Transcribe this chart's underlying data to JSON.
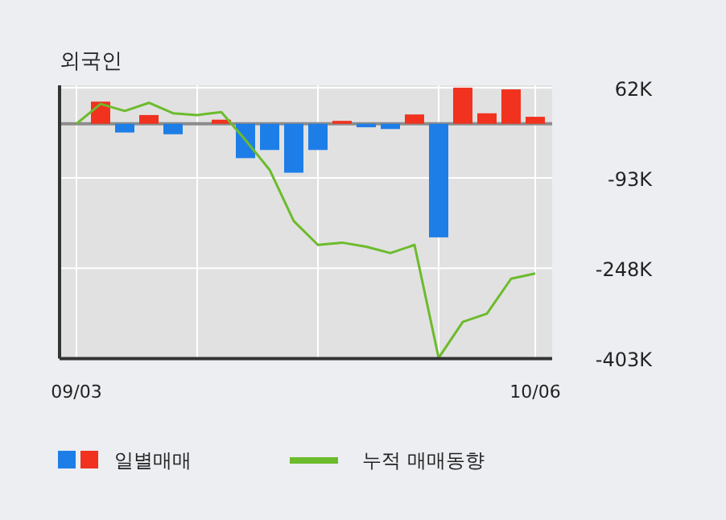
{
  "chart_data": {
    "type": "bar",
    "title": "외국인",
    "categories": [
      "09/03",
      null,
      null,
      null,
      null,
      null,
      null,
      null,
      null,
      null,
      null,
      null,
      null,
      null,
      null,
      null,
      null,
      null,
      null,
      "10/06"
    ],
    "series": [
      {
        "name": "일별매매",
        "values": [
          0,
          38000,
          -15000,
          15000,
          -18000,
          0,
          7000,
          -59000,
          -45000,
          -84000,
          -45000,
          5000,
          -6000,
          -9000,
          16000,
          -195000,
          62000,
          18000,
          59000,
          12000
        ],
        "colors": [
          "#f0321e",
          "#f0321e",
          "#1e7ee8",
          "#f0321e",
          "#1e7ee8",
          "#f0321e",
          "#f0321e",
          "#1e7ee8",
          "#1e7ee8",
          "#1e7ee8",
          "#1e7ee8",
          "#f0321e",
          "#1e7ee8",
          "#1e7ee8",
          "#f0321e",
          "#1e7ee8",
          "#f0321e",
          "#f0321e",
          "#f0321e",
          "#f0321e"
        ]
      },
      {
        "name": "누적 매매동향",
        "type": "line",
        "color": "#6cbb2c",
        "values": [
          0,
          34000,
          22000,
          36000,
          18000,
          15000,
          20000,
          -28000,
          -79000,
          -167000,
          -208000,
          -204000,
          -211000,
          -222000,
          -208000,
          -402000,
          -340000,
          -326000,
          -266000,
          -257000
        ]
      }
    ],
    "ylim": [
      -403000,
      66000
    ],
    "yticks": [
      {
        "value": 62000,
        "label": "62K"
      },
      {
        "value": -93000,
        "label": "-93K"
      },
      {
        "value": -248000,
        "label": "-248K"
      },
      {
        "value": -403000,
        "label": "-403K"
      }
    ],
    "grid": true,
    "legend": "bottom",
    "marker": "none"
  }
}
